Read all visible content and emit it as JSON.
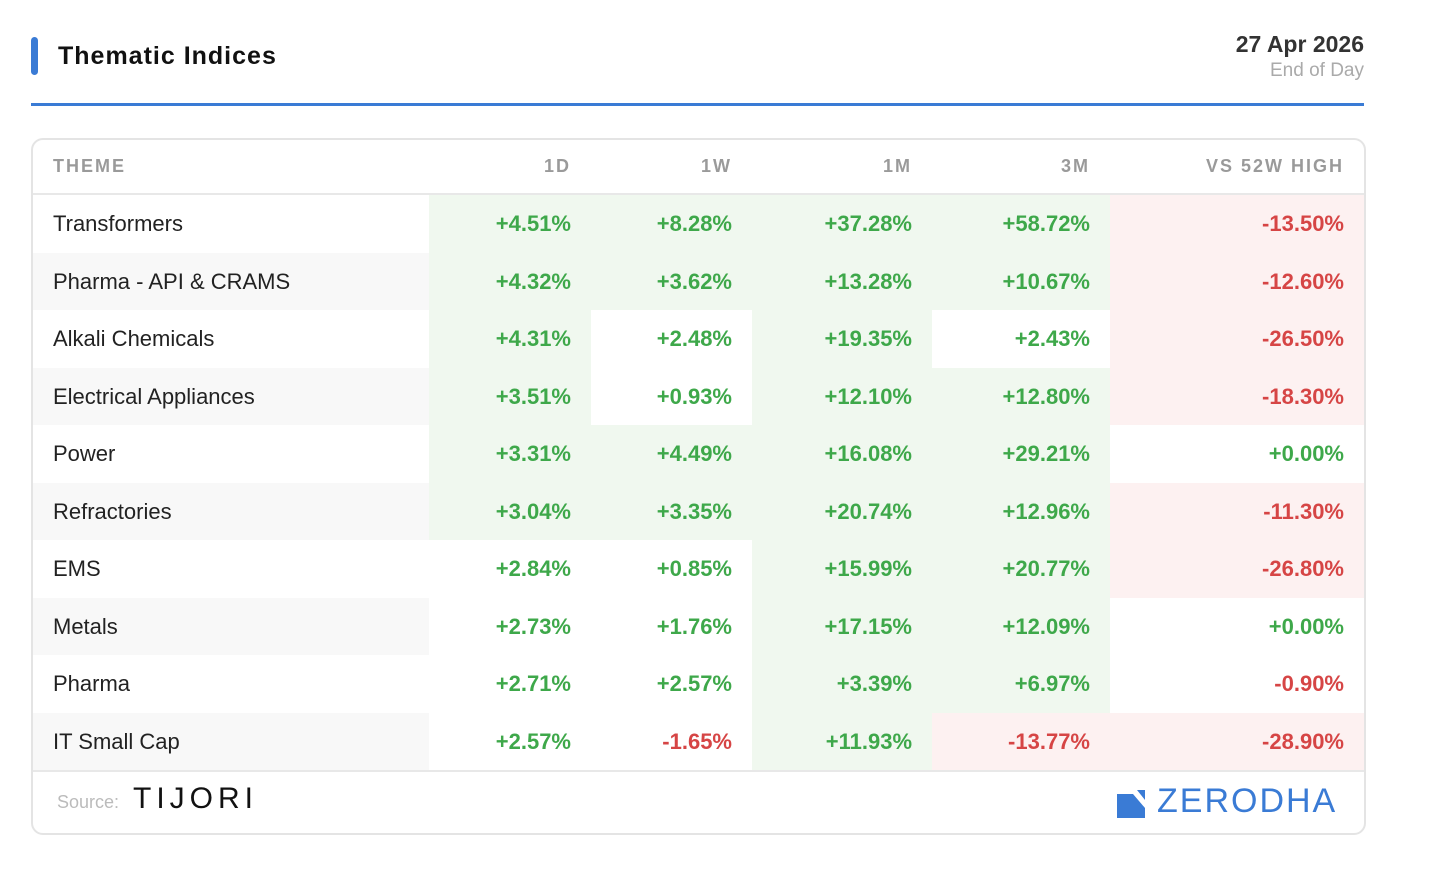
{
  "header": {
    "title": "Thematic Indices",
    "date": "27 Apr 2026",
    "date_note": "End of Day"
  },
  "colors": {
    "accent": "#3a7bd5",
    "positive_text": "#3ea84a",
    "negative_text": "#d64545",
    "positive_bg": "#f0f8ef",
    "negative_bg": "#fdf1f1",
    "row_alt_bg": "#f8f8f8"
  },
  "chart_data": {
    "type": "table",
    "title": "Thematic Indices",
    "columns": [
      "THEME",
      "1D",
      "1W",
      "1M",
      "3M",
      "VS 52W HIGH"
    ],
    "rows": [
      {
        "theme": "Transformers",
        "values": [
          {
            "text": "+4.51%",
            "value": 4.51,
            "hl": true
          },
          {
            "text": "+8.28%",
            "value": 8.28,
            "hl": true
          },
          {
            "text": "+37.28%",
            "value": 37.28,
            "hl": true
          },
          {
            "text": "+58.72%",
            "value": 58.72,
            "hl": true
          },
          {
            "text": "-13.50%",
            "value": -13.5,
            "hl": true
          }
        ]
      },
      {
        "theme": "Pharma - API & CRAMS",
        "values": [
          {
            "text": "+4.32%",
            "value": 4.32,
            "hl": true
          },
          {
            "text": "+3.62%",
            "value": 3.62,
            "hl": true
          },
          {
            "text": "+13.28%",
            "value": 13.28,
            "hl": true
          },
          {
            "text": "+10.67%",
            "value": 10.67,
            "hl": true
          },
          {
            "text": "-12.60%",
            "value": -12.6,
            "hl": true
          }
        ]
      },
      {
        "theme": "Alkali Chemicals",
        "values": [
          {
            "text": "+4.31%",
            "value": 4.31,
            "hl": true
          },
          {
            "text": "+2.48%",
            "value": 2.48,
            "hl": false
          },
          {
            "text": "+19.35%",
            "value": 19.35,
            "hl": true
          },
          {
            "text": "+2.43%",
            "value": 2.43,
            "hl": false
          },
          {
            "text": "-26.50%",
            "value": -26.5,
            "hl": true
          }
        ]
      },
      {
        "theme": "Electrical Appliances",
        "values": [
          {
            "text": "+3.51%",
            "value": 3.51,
            "hl": true
          },
          {
            "text": "+0.93%",
            "value": 0.93,
            "hl": false
          },
          {
            "text": "+12.10%",
            "value": 12.1,
            "hl": true
          },
          {
            "text": "+12.80%",
            "value": 12.8,
            "hl": true
          },
          {
            "text": "-18.30%",
            "value": -18.3,
            "hl": true
          }
        ]
      },
      {
        "theme": "Power",
        "values": [
          {
            "text": "+3.31%",
            "value": 3.31,
            "hl": true
          },
          {
            "text": "+4.49%",
            "value": 4.49,
            "hl": true
          },
          {
            "text": "+16.08%",
            "value": 16.08,
            "hl": true
          },
          {
            "text": "+29.21%",
            "value": 29.21,
            "hl": true
          },
          {
            "text": "+0.00%",
            "value": 0.0,
            "hl": false
          }
        ]
      },
      {
        "theme": "Refractories",
        "values": [
          {
            "text": "+3.04%",
            "value": 3.04,
            "hl": true
          },
          {
            "text": "+3.35%",
            "value": 3.35,
            "hl": true
          },
          {
            "text": "+20.74%",
            "value": 20.74,
            "hl": true
          },
          {
            "text": "+12.96%",
            "value": 12.96,
            "hl": true
          },
          {
            "text": "-11.30%",
            "value": -11.3,
            "hl": true
          }
        ]
      },
      {
        "theme": "EMS",
        "values": [
          {
            "text": "+2.84%",
            "value": 2.84,
            "hl": false
          },
          {
            "text": "+0.85%",
            "value": 0.85,
            "hl": false
          },
          {
            "text": "+15.99%",
            "value": 15.99,
            "hl": true
          },
          {
            "text": "+20.77%",
            "value": 20.77,
            "hl": true
          },
          {
            "text": "-26.80%",
            "value": -26.8,
            "hl": true
          }
        ]
      },
      {
        "theme": "Metals",
        "values": [
          {
            "text": "+2.73%",
            "value": 2.73,
            "hl": false
          },
          {
            "text": "+1.76%",
            "value": 1.76,
            "hl": false
          },
          {
            "text": "+17.15%",
            "value": 17.15,
            "hl": true
          },
          {
            "text": "+12.09%",
            "value": 12.09,
            "hl": true
          },
          {
            "text": "+0.00%",
            "value": 0.0,
            "hl": false
          }
        ]
      },
      {
        "theme": "Pharma",
        "values": [
          {
            "text": "+2.71%",
            "value": 2.71,
            "hl": false
          },
          {
            "text": "+2.57%",
            "value": 2.57,
            "hl": false
          },
          {
            "text": "+3.39%",
            "value": 3.39,
            "hl": true
          },
          {
            "text": "+6.97%",
            "value": 6.97,
            "hl": true
          },
          {
            "text": "-0.90%",
            "value": -0.9,
            "hl": false
          }
        ]
      },
      {
        "theme": "IT Small Cap",
        "values": [
          {
            "text": "+2.57%",
            "value": 2.57,
            "hl": false
          },
          {
            "text": "-1.65%",
            "value": -1.65,
            "hl": false
          },
          {
            "text": "+11.93%",
            "value": 11.93,
            "hl": true
          },
          {
            "text": "-13.77%",
            "value": -13.77,
            "hl": true
          },
          {
            "text": "-28.90%",
            "value": -28.9,
            "hl": true
          }
        ]
      }
    ]
  },
  "footer": {
    "source_label": "Source:",
    "source_name": "TIJORI",
    "brand": "ZERODHA",
    "brand_icon": "zerodha-logo-icon"
  }
}
